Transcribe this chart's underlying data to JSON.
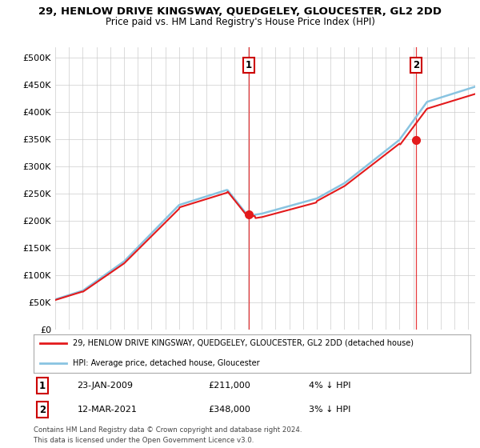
{
  "title": "29, HENLOW DRIVE KINGSWAY, QUEDGELEY, GLOUCESTER, GL2 2DD",
  "subtitle": "Price paid vs. HM Land Registry's House Price Index (HPI)",
  "legend_line1": "29, HENLOW DRIVE KINGSWAY, QUEDGELEY, GLOUCESTER, GL2 2DD (detached house)",
  "legend_line2": "HPI: Average price, detached house, Gloucester",
  "annotation1": {
    "num": "1",
    "date": "23-JAN-2009",
    "price": "£211,000",
    "pct": "4% ↓ HPI"
  },
  "annotation2": {
    "num": "2",
    "date": "12-MAR-2021",
    "price": "£348,000",
    "pct": "3% ↓ HPI"
  },
  "footer": "Contains HM Land Registry data © Crown copyright and database right 2024.\nThis data is licensed under the Open Government Licence v3.0.",
  "ylim": [
    0,
    520000
  ],
  "yticks": [
    0,
    50000,
    100000,
    150000,
    200000,
    250000,
    300000,
    350000,
    400000,
    450000,
    500000
  ],
  "hpi_color": "#89c4e1",
  "price_color": "#e31a1c",
  "vline_color": "#e31a1c",
  "background_color": "#ffffff",
  "grid_color": "#cccccc",
  "t1": 2009.07,
  "t2": 2021.21,
  "price1": 211000,
  "price2": 348000,
  "xmin": 1995,
  "xmax": 2025.5
}
